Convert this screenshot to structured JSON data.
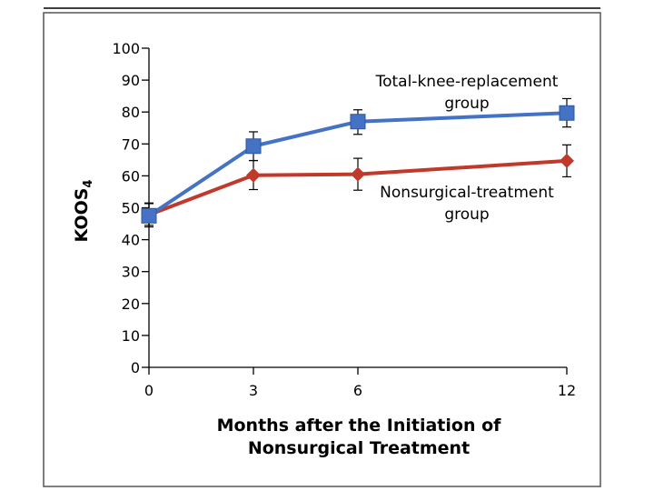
{
  "chart_data": {
    "type": "line",
    "xlabel": [
      "Months after the Initiation of",
      "Nonsurgical Treatment"
    ],
    "ylabel_main": "KOOS",
    "ylabel_sub": "4",
    "x": [
      0,
      3,
      6,
      12
    ],
    "xticks": [
      0,
      3,
      6,
      12
    ],
    "xlim": [
      0,
      12
    ],
    "yticks": [
      0,
      10,
      20,
      30,
      40,
      50,
      60,
      70,
      80,
      90,
      100
    ],
    "ylim": [
      0,
      100
    ],
    "grid": false,
    "series": [
      {
        "label": [
          "Total-knee-replacement",
          "group"
        ],
        "color": "#4472C4",
        "marker": "square",
        "values": [
          47.5,
          69.3,
          77.0,
          79.7
        ],
        "err_low": [
          44.0,
          64.8,
          73.0,
          75.3
        ],
        "err_high": [
          51.3,
          73.8,
          80.7,
          84.2
        ]
      },
      {
        "label": [
          "Nonsurgical-treatment",
          "group"
        ],
        "color": "#C0392B",
        "marker": "diamond",
        "values": [
          47.8,
          60.2,
          60.5,
          64.7
        ],
        "err_low": [
          44.5,
          55.7,
          55.5,
          59.7
        ],
        "err_high": [
          51.5,
          64.8,
          65.5,
          69.7
        ]
      }
    ]
  }
}
